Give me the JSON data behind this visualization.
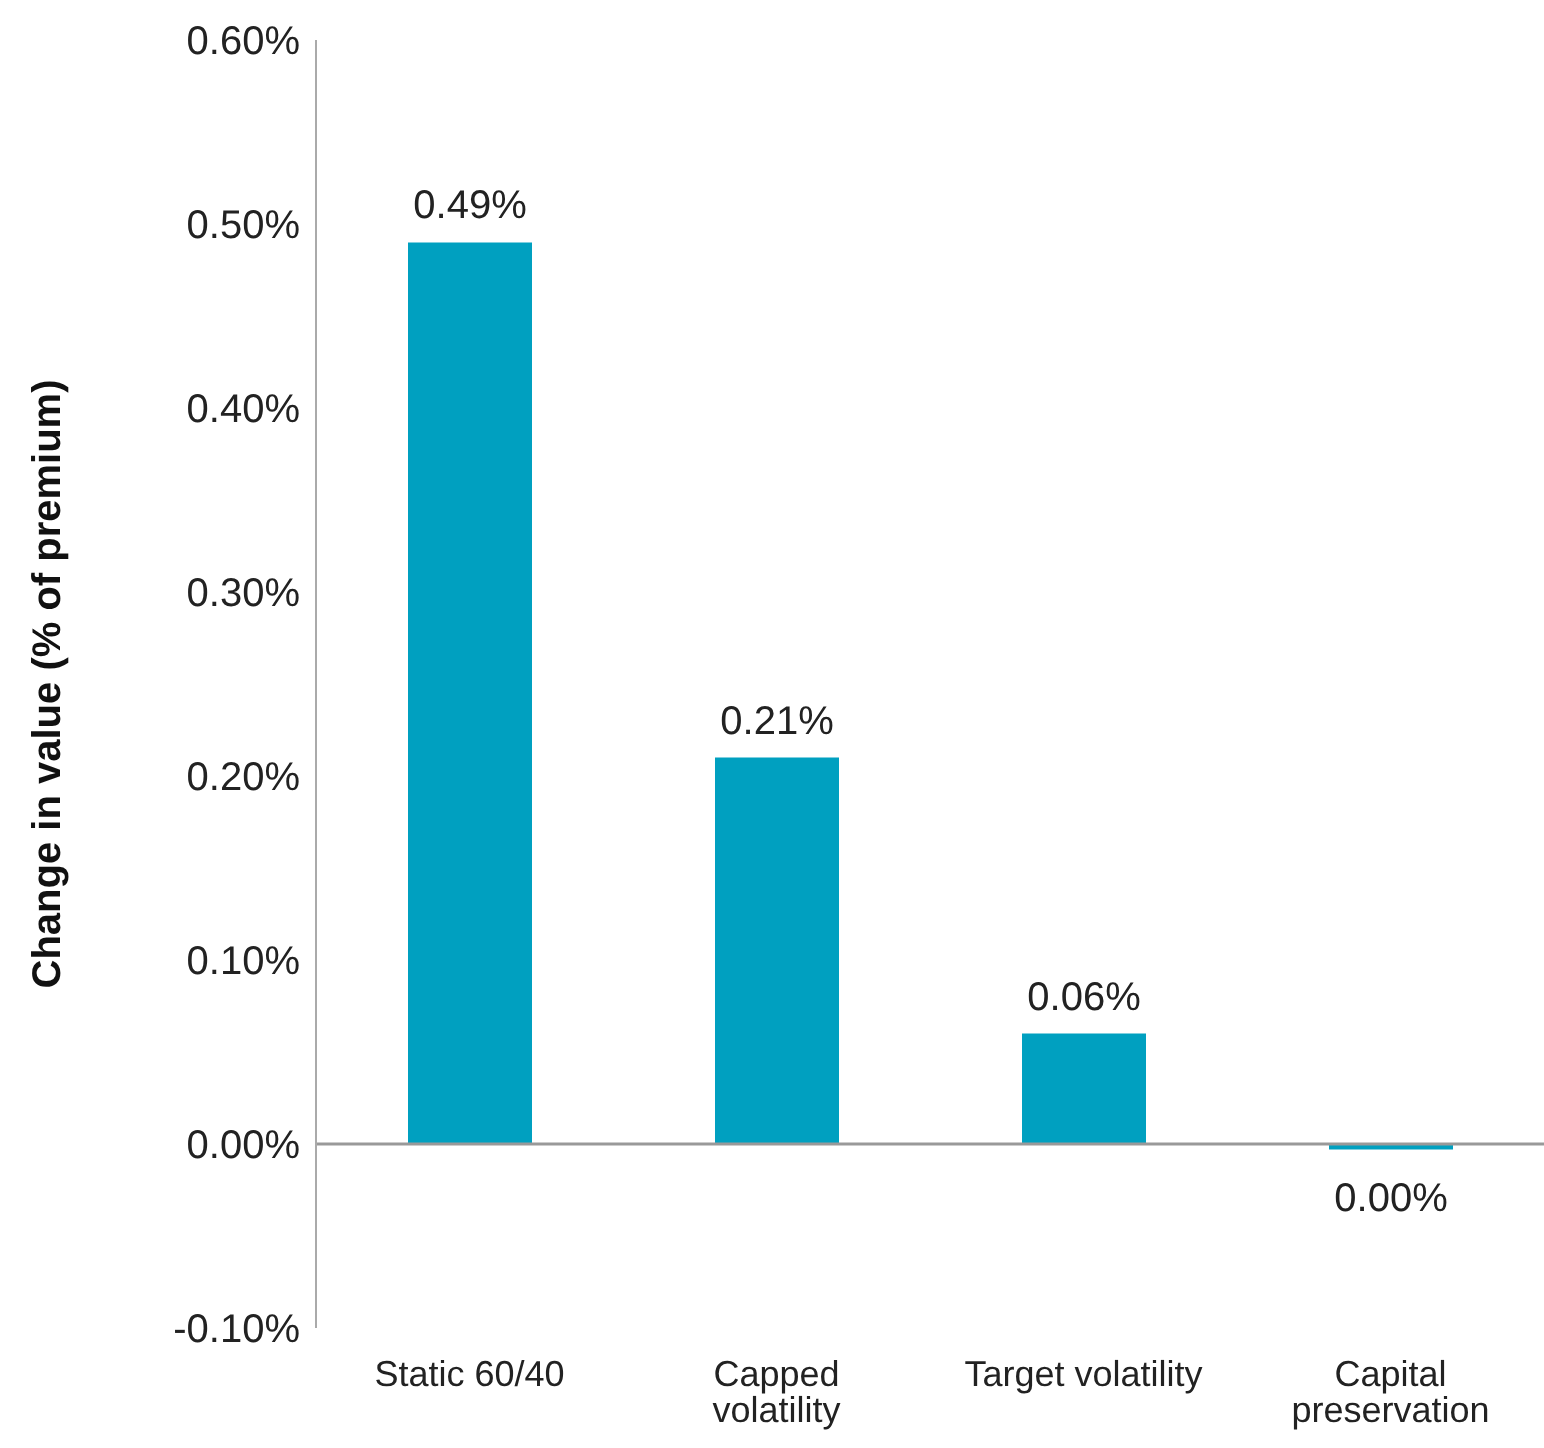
{
  "chart_data": {
    "type": "bar",
    "ylabel": "Change in value (% of premium)",
    "categories": [
      "Static 60/40",
      "Capped volatility",
      "Target volatility",
      "Capital preservation"
    ],
    "values": [
      0.49,
      0.21,
      0.06,
      -0.003
    ],
    "color": "#00a0c0",
    "value_labels": [
      "0.49%",
      "0.21%",
      "0.06%",
      "0.00%"
    ],
    "ylim": [
      -0.1,
      0.6
    ],
    "yticks": [
      {
        "value": -0.1,
        "label": "-0.10%"
      },
      {
        "value": 0,
        "label": "0.00%"
      },
      {
        "value": 0.1,
        "label": "0.10%"
      },
      {
        "value": 0.2,
        "label": "0.20%"
      },
      {
        "value": 0.3,
        "label": "0.30%"
      },
      {
        "value": 0.4,
        "label": "0.40%"
      },
      {
        "value": 0.5,
        "label": "0.50%"
      },
      {
        "value": 0.6,
        "label": "0.60%"
      }
    ],
    "ref_lines": [
      {
        "axis": "y",
        "value": 0,
        "color": "#999999"
      }
    ],
    "grid": false,
    "legend": false
  }
}
